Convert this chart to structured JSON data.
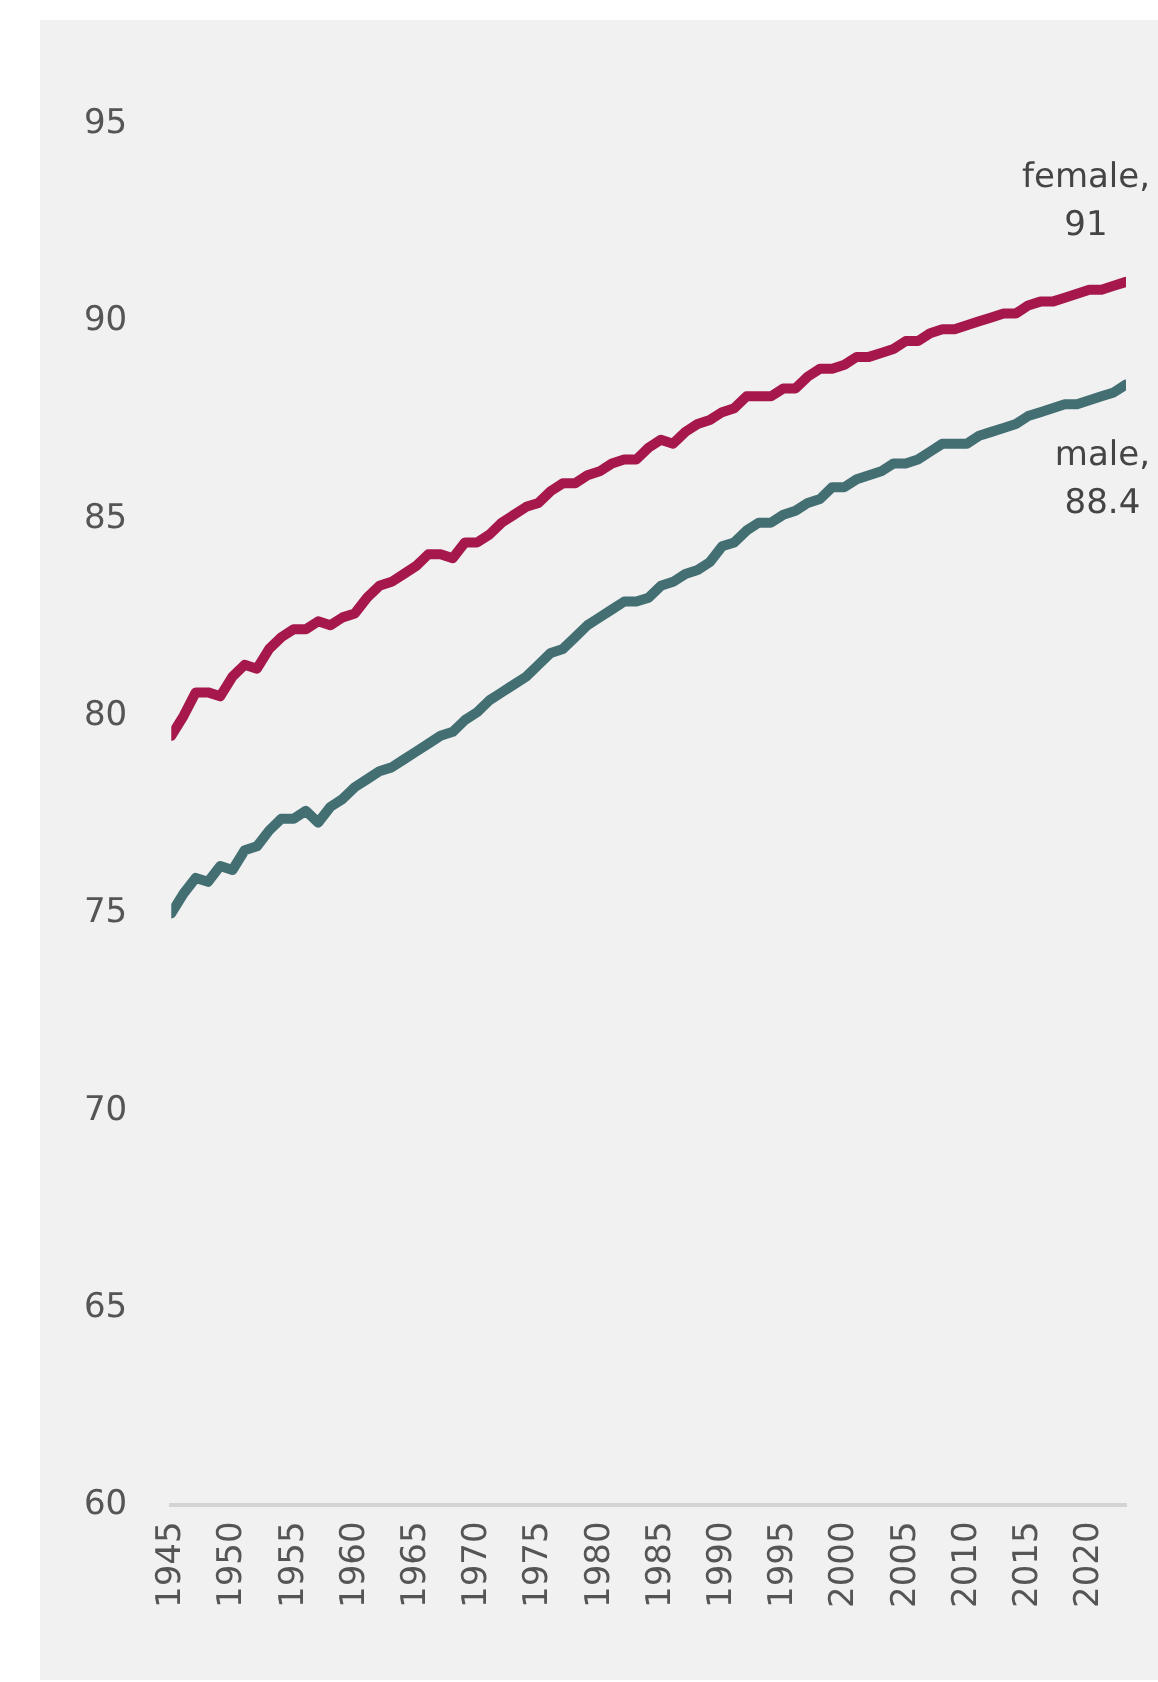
{
  "chart_data": {
    "type": "line",
    "x": [
      1945,
      1946,
      1947,
      1948,
      1949,
      1950,
      1951,
      1952,
      1953,
      1954,
      1955,
      1956,
      1957,
      1958,
      1959,
      1960,
      1961,
      1962,
      1963,
      1964,
      1965,
      1966,
      1967,
      1968,
      1969,
      1970,
      1971,
      1972,
      1973,
      1974,
      1975,
      1976,
      1977,
      1978,
      1979,
      1980,
      1981,
      1982,
      1983,
      1984,
      1985,
      1986,
      1987,
      1988,
      1989,
      1990,
      1991,
      1992,
      1993,
      1994,
      1995,
      1996,
      1997,
      1998,
      1999,
      2000,
      2001,
      2002,
      2003,
      2004,
      2005,
      2006,
      2007,
      2008,
      2009,
      2010,
      2011,
      2012,
      2013,
      2014,
      2015,
      2016,
      2017,
      2018,
      2019,
      2020,
      2021,
      2022,
      2023
    ],
    "series": [
      {
        "color": "#a6174c",
        "values": [
          79.5,
          80.0,
          80.6,
          80.6,
          80.5,
          81.0,
          81.3,
          81.2,
          81.7,
          82.0,
          82.2,
          82.2,
          82.4,
          82.3,
          82.5,
          82.6,
          83.0,
          83.3,
          83.4,
          83.6,
          83.8,
          84.1,
          84.1,
          84.0,
          84.4,
          84.4,
          84.6,
          84.9,
          85.1,
          85.3,
          85.4,
          85.7,
          85.9,
          85.9,
          86.1,
          86.2,
          86.4,
          86.5,
          86.5,
          86.8,
          87.0,
          86.9,
          87.2,
          87.4,
          87.5,
          87.7,
          87.8,
          88.1,
          88.1,
          88.1,
          88.3,
          88.3,
          88.6,
          88.8,
          88.8,
          88.9,
          89.1,
          89.1,
          89.2,
          89.3,
          89.5,
          89.5,
          89.7,
          89.8,
          89.8,
          89.9,
          90.0,
          90.1,
          90.2,
          90.2,
          90.4,
          90.5,
          90.5,
          90.6,
          90.7,
          90.8,
          90.8,
          90.9,
          91.0
        ]
      },
      {
        "color": "#436f73",
        "values": [
          75.0,
          75.5,
          75.9,
          75.8,
          76.2,
          76.1,
          76.6,
          76.7,
          77.1,
          77.4,
          77.4,
          77.6,
          77.3,
          77.7,
          77.9,
          78.2,
          78.4,
          78.6,
          78.7,
          78.9,
          79.1,
          79.3,
          79.5,
          79.6,
          79.9,
          80.1,
          80.4,
          80.6,
          80.8,
          81.0,
          81.3,
          81.6,
          81.7,
          82.0,
          82.3,
          82.5,
          82.7,
          82.9,
          82.9,
          83.0,
          83.3,
          83.4,
          83.6,
          83.7,
          83.9,
          84.3,
          84.4,
          84.7,
          84.9,
          84.9,
          85.1,
          85.2,
          85.4,
          85.5,
          85.8,
          85.8,
          86.0,
          86.1,
          86.2,
          86.4,
          86.4,
          86.5,
          86.7,
          86.9,
          86.9,
          86.9,
          87.1,
          87.2,
          87.3,
          87.4,
          87.6,
          87.7,
          87.8,
          87.9,
          87.9,
          88.0,
          88.1,
          88.2,
          88.4
        ]
      }
    ],
    "xlim": [
      1945,
      2023
    ],
    "xticks": [
      1945,
      1950,
      1955,
      1960,
      1965,
      1970,
      1975,
      1980,
      1985,
      1990,
      1995,
      2000,
      2005,
      2010,
      2015,
      2020
    ],
    "ylim": [
      60,
      95
    ],
    "yticks": [
      60,
      65,
      70,
      75,
      80,
      85,
      90,
      95
    ],
    "annotations": [
      {
        "text": "female,\n91",
        "x": 2023,
        "y": 91
      },
      {
        "text": "male,\n88.4",
        "x": 2023,
        "y": 88.4
      }
    ],
    "grid": false,
    "legend": false,
    "marker": "none",
    "line_style": "solid"
  }
}
